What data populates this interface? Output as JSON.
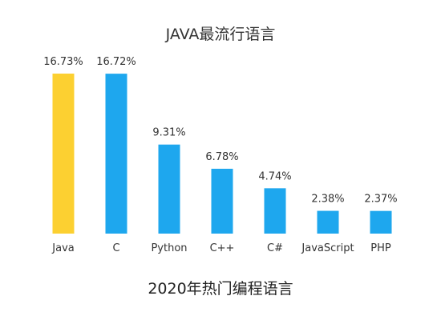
{
  "chart_data": {
    "type": "bar",
    "title": "JAVA最流行语言",
    "categories": [
      "Java",
      "C",
      "Python",
      "C++",
      "C#",
      "JavaScript",
      "PHP"
    ],
    "values": [
      16.73,
      16.72,
      9.31,
      6.78,
      4.74,
      2.38,
      2.37
    ],
    "data_labels": [
      "16.73%",
      "16.72%",
      "9.31%",
      "6.78%",
      "4.74%",
      "2.38%",
      "2.37%"
    ],
    "unit": "%",
    "ylim": [
      0,
      16.73
    ],
    "grid": false,
    "legend": "none",
    "colors": {
      "highlight": "#FCD031",
      "default": "#1EA7EE"
    },
    "highlight_index": 0
  },
  "caption": "2020年热门编程语言"
}
